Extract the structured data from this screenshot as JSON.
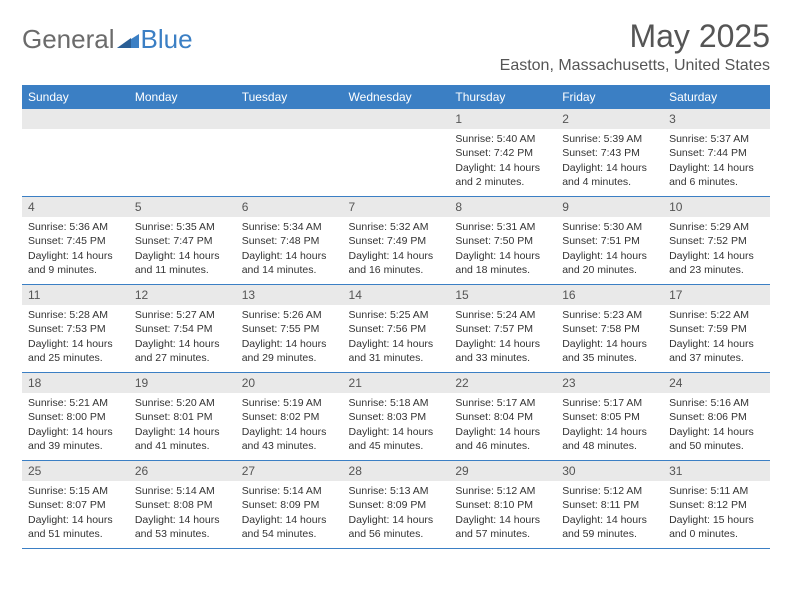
{
  "logo": {
    "textA": "General",
    "textB": "Blue"
  },
  "title": "May 2025",
  "location": "Easton, Massachusetts, United States",
  "colors": {
    "header_bg": "#3b7fc4",
    "header_text": "#ffffff",
    "daynum_bg": "#e9e9e9",
    "border": "#3b7fc4",
    "body_text": "#333333",
    "title_text": "#555555"
  },
  "weekdays": [
    "Sunday",
    "Monday",
    "Tuesday",
    "Wednesday",
    "Thursday",
    "Friday",
    "Saturday"
  ],
  "weeks": [
    [
      null,
      null,
      null,
      null,
      {
        "d": "1",
        "sr": "5:40 AM",
        "ss": "7:42 PM",
        "dl": "14 hours and 2 minutes."
      },
      {
        "d": "2",
        "sr": "5:39 AM",
        "ss": "7:43 PM",
        "dl": "14 hours and 4 minutes."
      },
      {
        "d": "3",
        "sr": "5:37 AM",
        "ss": "7:44 PM",
        "dl": "14 hours and 6 minutes."
      }
    ],
    [
      {
        "d": "4",
        "sr": "5:36 AM",
        "ss": "7:45 PM",
        "dl": "14 hours and 9 minutes."
      },
      {
        "d": "5",
        "sr": "5:35 AM",
        "ss": "7:47 PM",
        "dl": "14 hours and 11 minutes."
      },
      {
        "d": "6",
        "sr": "5:34 AM",
        "ss": "7:48 PM",
        "dl": "14 hours and 14 minutes."
      },
      {
        "d": "7",
        "sr": "5:32 AM",
        "ss": "7:49 PM",
        "dl": "14 hours and 16 minutes."
      },
      {
        "d": "8",
        "sr": "5:31 AM",
        "ss": "7:50 PM",
        "dl": "14 hours and 18 minutes."
      },
      {
        "d": "9",
        "sr": "5:30 AM",
        "ss": "7:51 PM",
        "dl": "14 hours and 20 minutes."
      },
      {
        "d": "10",
        "sr": "5:29 AM",
        "ss": "7:52 PM",
        "dl": "14 hours and 23 minutes."
      }
    ],
    [
      {
        "d": "11",
        "sr": "5:28 AM",
        "ss": "7:53 PM",
        "dl": "14 hours and 25 minutes."
      },
      {
        "d": "12",
        "sr": "5:27 AM",
        "ss": "7:54 PM",
        "dl": "14 hours and 27 minutes."
      },
      {
        "d": "13",
        "sr": "5:26 AM",
        "ss": "7:55 PM",
        "dl": "14 hours and 29 minutes."
      },
      {
        "d": "14",
        "sr": "5:25 AM",
        "ss": "7:56 PM",
        "dl": "14 hours and 31 minutes."
      },
      {
        "d": "15",
        "sr": "5:24 AM",
        "ss": "7:57 PM",
        "dl": "14 hours and 33 minutes."
      },
      {
        "d": "16",
        "sr": "5:23 AM",
        "ss": "7:58 PM",
        "dl": "14 hours and 35 minutes."
      },
      {
        "d": "17",
        "sr": "5:22 AM",
        "ss": "7:59 PM",
        "dl": "14 hours and 37 minutes."
      }
    ],
    [
      {
        "d": "18",
        "sr": "5:21 AM",
        "ss": "8:00 PM",
        "dl": "14 hours and 39 minutes."
      },
      {
        "d": "19",
        "sr": "5:20 AM",
        "ss": "8:01 PM",
        "dl": "14 hours and 41 minutes."
      },
      {
        "d": "20",
        "sr": "5:19 AM",
        "ss": "8:02 PM",
        "dl": "14 hours and 43 minutes."
      },
      {
        "d": "21",
        "sr": "5:18 AM",
        "ss": "8:03 PM",
        "dl": "14 hours and 45 minutes."
      },
      {
        "d": "22",
        "sr": "5:17 AM",
        "ss": "8:04 PM",
        "dl": "14 hours and 46 minutes."
      },
      {
        "d": "23",
        "sr": "5:17 AM",
        "ss": "8:05 PM",
        "dl": "14 hours and 48 minutes."
      },
      {
        "d": "24",
        "sr": "5:16 AM",
        "ss": "8:06 PM",
        "dl": "14 hours and 50 minutes."
      }
    ],
    [
      {
        "d": "25",
        "sr": "5:15 AM",
        "ss": "8:07 PM",
        "dl": "14 hours and 51 minutes."
      },
      {
        "d": "26",
        "sr": "5:14 AM",
        "ss": "8:08 PM",
        "dl": "14 hours and 53 minutes."
      },
      {
        "d": "27",
        "sr": "5:14 AM",
        "ss": "8:09 PM",
        "dl": "14 hours and 54 minutes."
      },
      {
        "d": "28",
        "sr": "5:13 AM",
        "ss": "8:09 PM",
        "dl": "14 hours and 56 minutes."
      },
      {
        "d": "29",
        "sr": "5:12 AM",
        "ss": "8:10 PM",
        "dl": "14 hours and 57 minutes."
      },
      {
        "d": "30",
        "sr": "5:12 AM",
        "ss": "8:11 PM",
        "dl": "14 hours and 59 minutes."
      },
      {
        "d": "31",
        "sr": "5:11 AM",
        "ss": "8:12 PM",
        "dl": "15 hours and 0 minutes."
      }
    ]
  ]
}
